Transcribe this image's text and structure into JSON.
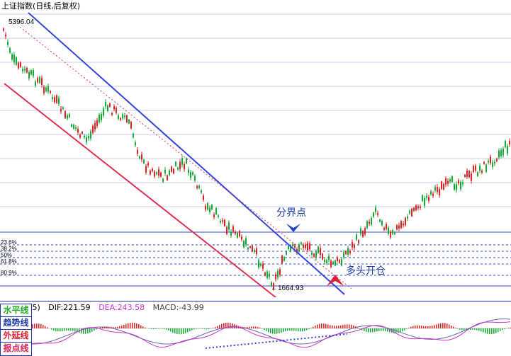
{
  "chart_title": "上证指数(日线,后复权)",
  "price_high_label": "5396.04",
  "price_low_label": "←1664.93",
  "fib_levels": [
    "23.6%",
    "38.2%",
    "50%",
    "61.8%",
    "80.9%"
  ],
  "annotations": {
    "boundary_point": "分界点",
    "open_long": "多头开仓"
  },
  "indicator": {
    "params": ",5)",
    "dif": "DIF:221.59",
    "dea": "DEA:243.58",
    "macd": "MACD:-43.99"
  },
  "toolbox": [
    {
      "label": "水平线",
      "color": "#22aa22"
    },
    {
      "label": "趋势线",
      "color": "#1e3aa8"
    },
    {
      "label": "外延线",
      "color": "#dd2233"
    },
    {
      "label": "报点线",
      "color": "#dd2255"
    }
  ],
  "colors": {
    "up": "#dd2222",
    "down": "#11aa33",
    "trend_blue": "#3344dd",
    "trend_red": "#e03050",
    "dif_line": "#6666aa",
    "dea_line": "#cc33cc"
  }
}
